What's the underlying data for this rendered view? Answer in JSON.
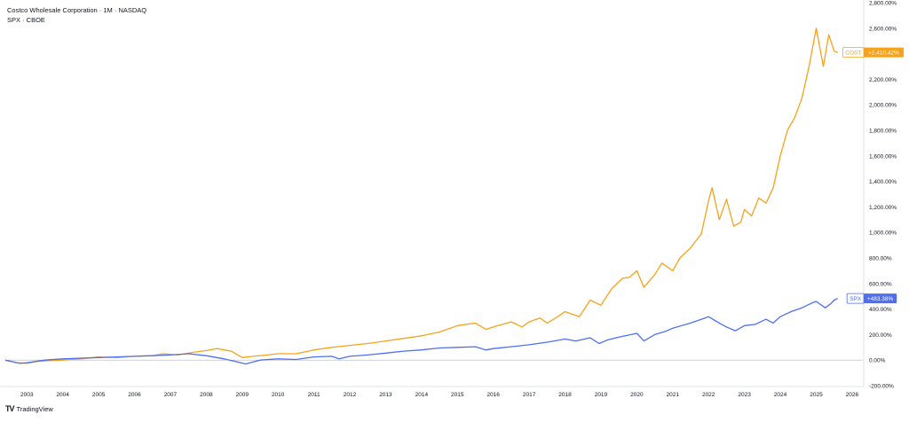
{
  "legend": {
    "line1": "Costco Wholesale Corporation · 1M · NASDAQ",
    "line2": "SPX · CBOE"
  },
  "branding": {
    "logo": "TV",
    "name": "TradingView"
  },
  "colors": {
    "cost": "#f7a21b",
    "spx": "#4f6ff0",
    "zero_line": "#b2b5be",
    "axis_text": "#131722",
    "background": "#ffffff"
  },
  "chart_data": {
    "type": "line",
    "x_start": 2002.4,
    "x_end": 2026.3,
    "y_range": [
      -200,
      2800
    ],
    "x_ticks": [
      "2003",
      "2004",
      "2005",
      "2006",
      "2007",
      "2008",
      "2009",
      "2010",
      "2011",
      "2012",
      "2013",
      "2014",
      "2015",
      "2016",
      "2017",
      "2018",
      "2019",
      "2020",
      "2021",
      "2022",
      "2023",
      "2024",
      "2025",
      "2026"
    ],
    "y_ticks": [
      {
        "value": 2800,
        "label": "2,800.00%"
      },
      {
        "value": 2600,
        "label": "2,600.00%"
      },
      {
        "value": 2400,
        "label": "2,400.00%"
      },
      {
        "value": 2200,
        "label": "2,200.00%"
      },
      {
        "value": 2000,
        "label": "2,000.00%"
      },
      {
        "value": 1800,
        "label": "1,800.00%"
      },
      {
        "value": 1600,
        "label": "1,600.00%"
      },
      {
        "value": 1400,
        "label": "1,400.00%"
      },
      {
        "value": 1200,
        "label": "1,200.00%"
      },
      {
        "value": 1000,
        "label": "1,000.00%"
      },
      {
        "value": 800,
        "label": "800.00%"
      },
      {
        "value": 600,
        "label": "600.00%"
      },
      {
        "value": 400,
        "label": "400.00%"
      },
      {
        "value": 200,
        "label": "200.00%"
      },
      {
        "value": 0,
        "label": "0.00%"
      },
      {
        "value": -200,
        "label": "-200.00%"
      }
    ],
    "grid": false,
    "series": [
      {
        "name": "COST",
        "color": "#f7a21b",
        "last_value": 2410.42,
        "last_label": "+2,410.42%",
        "points": [
          [
            2002.4,
            0
          ],
          [
            2002.7,
            -20
          ],
          [
            2003.0,
            -25
          ],
          [
            2003.3,
            -10
          ],
          [
            2003.6,
            -5
          ],
          [
            2004.0,
            0
          ],
          [
            2004.5,
            10
          ],
          [
            2005.0,
            25
          ],
          [
            2005.5,
            20
          ],
          [
            2006.0,
            30
          ],
          [
            2006.5,
            35
          ],
          [
            2006.8,
            50
          ],
          [
            2007.2,
            40
          ],
          [
            2007.6,
            60
          ],
          [
            2008.0,
            75
          ],
          [
            2008.3,
            90
          ],
          [
            2008.7,
            70
          ],
          [
            2009.0,
            20
          ],
          [
            2009.3,
            30
          ],
          [
            2009.7,
            40
          ],
          [
            2010.0,
            50
          ],
          [
            2010.5,
            50
          ],
          [
            2011.0,
            80
          ],
          [
            2011.5,
            100
          ],
          [
            2012.0,
            115
          ],
          [
            2012.5,
            130
          ],
          [
            2013.0,
            150
          ],
          [
            2013.5,
            170
          ],
          [
            2014.0,
            190
          ],
          [
            2014.5,
            220
          ],
          [
            2015.0,
            270
          ],
          [
            2015.5,
            290
          ],
          [
            2015.8,
            240
          ],
          [
            2016.0,
            260
          ],
          [
            2016.5,
            300
          ],
          [
            2016.8,
            260
          ],
          [
            2017.0,
            300
          ],
          [
            2017.3,
            330
          ],
          [
            2017.5,
            290
          ],
          [
            2017.8,
            340
          ],
          [
            2018.0,
            380
          ],
          [
            2018.4,
            340
          ],
          [
            2018.7,
            470
          ],
          [
            2019.0,
            430
          ],
          [
            2019.3,
            560
          ],
          [
            2019.6,
            640
          ],
          [
            2019.8,
            650
          ],
          [
            2020.0,
            700
          ],
          [
            2020.2,
            570
          ],
          [
            2020.5,
            670
          ],
          [
            2020.7,
            760
          ],
          [
            2021.0,
            700
          ],
          [
            2021.2,
            800
          ],
          [
            2021.5,
            880
          ],
          [
            2021.8,
            990
          ],
          [
            2022.0,
            1250
          ],
          [
            2022.1,
            1350
          ],
          [
            2022.3,
            1100
          ],
          [
            2022.5,
            1260
          ],
          [
            2022.7,
            1050
          ],
          [
            2022.9,
            1080
          ],
          [
            2023.0,
            1180
          ],
          [
            2023.2,
            1130
          ],
          [
            2023.4,
            1270
          ],
          [
            2023.6,
            1230
          ],
          [
            2023.8,
            1350
          ],
          [
            2024.0,
            1600
          ],
          [
            2024.2,
            1800
          ],
          [
            2024.4,
            1900
          ],
          [
            2024.6,
            2050
          ],
          [
            2024.8,
            2300
          ],
          [
            2025.0,
            2600
          ],
          [
            2025.2,
            2300
          ],
          [
            2025.35,
            2550
          ],
          [
            2025.5,
            2420
          ],
          [
            2025.6,
            2410
          ]
        ]
      },
      {
        "name": "SPX",
        "color": "#4f6ff0",
        "last_value": 483.38,
        "last_label": "+483.38%",
        "points": [
          [
            2002.4,
            0
          ],
          [
            2002.8,
            -25
          ],
          [
            2003.0,
            -20
          ],
          [
            2003.5,
            0
          ],
          [
            2004.0,
            10
          ],
          [
            2004.5,
            15
          ],
          [
            2005.0,
            20
          ],
          [
            2005.5,
            25
          ],
          [
            2006.0,
            30
          ],
          [
            2006.5,
            35
          ],
          [
            2007.0,
            40
          ],
          [
            2007.5,
            50
          ],
          [
            2008.0,
            35
          ],
          [
            2008.5,
            10
          ],
          [
            2008.8,
            -10
          ],
          [
            2009.1,
            -30
          ],
          [
            2009.5,
            0
          ],
          [
            2010.0,
            10
          ],
          [
            2010.5,
            5
          ],
          [
            2011.0,
            25
          ],
          [
            2011.5,
            30
          ],
          [
            2011.7,
            10
          ],
          [
            2012.0,
            30
          ],
          [
            2012.5,
            40
          ],
          [
            2013.0,
            55
          ],
          [
            2013.5,
            70
          ],
          [
            2014.0,
            80
          ],
          [
            2014.5,
            95
          ],
          [
            2015.0,
            100
          ],
          [
            2015.5,
            105
          ],
          [
            2015.8,
            80
          ],
          [
            2016.0,
            90
          ],
          [
            2016.5,
            105
          ],
          [
            2017.0,
            120
          ],
          [
            2017.5,
            140
          ],
          [
            2018.0,
            165
          ],
          [
            2018.3,
            150
          ],
          [
            2018.7,
            175
          ],
          [
            2018.95,
            130
          ],
          [
            2019.2,
            160
          ],
          [
            2019.5,
            180
          ],
          [
            2020.0,
            210
          ],
          [
            2020.2,
            150
          ],
          [
            2020.5,
            200
          ],
          [
            2020.8,
            225
          ],
          [
            2021.0,
            250
          ],
          [
            2021.5,
            290
          ],
          [
            2021.9,
            330
          ],
          [
            2022.0,
            340
          ],
          [
            2022.3,
            290
          ],
          [
            2022.5,
            260
          ],
          [
            2022.75,
            230
          ],
          [
            2023.0,
            270
          ],
          [
            2023.3,
            280
          ],
          [
            2023.6,
            320
          ],
          [
            2023.8,
            290
          ],
          [
            2024.0,
            340
          ],
          [
            2024.3,
            380
          ],
          [
            2024.6,
            410
          ],
          [
            2024.9,
            450
          ],
          [
            2025.0,
            460
          ],
          [
            2025.25,
            410
          ],
          [
            2025.4,
            440
          ],
          [
            2025.5,
            470
          ],
          [
            2025.6,
            483
          ]
        ]
      }
    ]
  }
}
